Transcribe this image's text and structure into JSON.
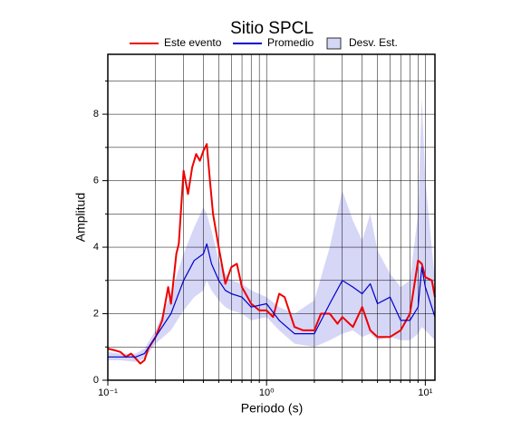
{
  "chart_data": {
    "type": "line",
    "title": "Sitio SPCL",
    "x_label": "Periodo (s)",
    "y_label": "Amplitud",
    "log_x": true,
    "grid": true,
    "xlim": [
      0.1,
      11.5
    ],
    "ylim": [
      0,
      9.8
    ],
    "xticks": [
      {
        "value": 0.1,
        "label": "10⁻¹"
      },
      {
        "value": 1,
        "label": "10⁰"
      },
      {
        "value": 10,
        "label": "10¹"
      }
    ],
    "xminor": [
      0.2,
      0.3,
      0.4,
      0.5,
      0.6,
      0.7,
      0.8,
      0.9,
      2,
      3,
      4,
      5,
      6,
      7,
      8,
      9
    ],
    "yticks": [
      0,
      2,
      4,
      6,
      8
    ],
    "yminor": [
      1,
      3,
      5,
      7,
      9
    ],
    "series": [
      {
        "name": "Este evento",
        "color": "#ee0000",
        "kind": "line",
        "x": [
          0.1,
          0.11,
          0.12,
          0.13,
          0.14,
          0.15,
          0.16,
          0.17,
          0.18,
          0.2,
          0.22,
          0.24,
          0.25,
          0.27,
          0.28,
          0.3,
          0.32,
          0.34,
          0.36,
          0.38,
          0.4,
          0.42,
          0.44,
          0.46,
          0.5,
          0.55,
          0.6,
          0.65,
          0.7,
          0.8,
          0.9,
          1.0,
          1.1,
          1.2,
          1.3,
          1.5,
          1.7,
          2.0,
          2.2,
          2.5,
          2.8,
          3.0,
          3.5,
          4.0,
          4.5,
          5.0,
          6.0,
          7.0,
          8.0,
          9.0,
          9.5,
          10,
          11,
          11.5
        ],
        "values": [
          0.95,
          0.9,
          0.85,
          0.7,
          0.8,
          0.65,
          0.5,
          0.6,
          0.95,
          1.3,
          1.8,
          2.8,
          2.3,
          3.8,
          4.1,
          6.3,
          5.6,
          6.4,
          6.8,
          6.6,
          6.9,
          7.1,
          6.0,
          5.0,
          4.0,
          2.9,
          3.4,
          3.5,
          2.8,
          2.3,
          2.1,
          2.1,
          1.9,
          2.6,
          2.5,
          1.6,
          1.5,
          1.5,
          2.0,
          2.0,
          1.7,
          1.9,
          1.6,
          2.2,
          1.5,
          1.3,
          1.3,
          1.5,
          2.0,
          3.6,
          3.5,
          3.1,
          3.0,
          2.5
        ]
      },
      {
        "name": "Promedio",
        "color": "#0000cc",
        "kind": "line",
        "x": [
          0.1,
          0.12,
          0.15,
          0.17,
          0.2,
          0.25,
          0.3,
          0.35,
          0.4,
          0.42,
          0.45,
          0.5,
          0.55,
          0.6,
          0.7,
          0.8,
          1.0,
          1.2,
          1.5,
          2.0,
          2.5,
          3.0,
          3.5,
          4.0,
          4.5,
          5.0,
          6.0,
          7.0,
          8.0,
          9.0,
          9.5,
          10,
          11.5
        ],
        "values": [
          0.7,
          0.7,
          0.7,
          0.8,
          1.3,
          2.0,
          3.0,
          3.6,
          3.8,
          4.1,
          3.5,
          3.0,
          2.7,
          2.6,
          2.5,
          2.2,
          2.3,
          1.8,
          1.4,
          1.4,
          2.3,
          3.0,
          2.8,
          2.6,
          2.9,
          2.3,
          2.5,
          1.8,
          1.8,
          2.2,
          3.4,
          2.8,
          1.9
        ]
      },
      {
        "name": "Desv. Est.",
        "color": "#d6d6f7",
        "kind": "band",
        "x": [
          0.1,
          0.12,
          0.15,
          0.17,
          0.2,
          0.25,
          0.3,
          0.35,
          0.4,
          0.42,
          0.45,
          0.5,
          0.55,
          0.6,
          0.7,
          0.8,
          1.0,
          1.2,
          1.5,
          2.0,
          2.5,
          3.0,
          3.5,
          4.0,
          4.5,
          5.0,
          6.0,
          7.0,
          8.0,
          9.0,
          9.5,
          10,
          11.5
        ],
        "upper": [
          0.85,
          0.8,
          0.8,
          0.95,
          1.5,
          2.6,
          3.8,
          4.6,
          5.2,
          5.0,
          4.5,
          3.6,
          3.2,
          3.0,
          2.9,
          2.7,
          2.5,
          2.2,
          2.0,
          2.4,
          4.0,
          5.7,
          4.8,
          4.2,
          5.0,
          3.9,
          3.2,
          2.8,
          3.0,
          5.0,
          8.5,
          6.0,
          3.0
        ],
        "lower": [
          0.6,
          0.6,
          0.55,
          0.65,
          1.1,
          1.5,
          2.1,
          2.5,
          2.7,
          3.0,
          2.7,
          2.4,
          2.2,
          2.1,
          2.0,
          1.8,
          1.9,
          1.5,
          1.1,
          1.0,
          1.2,
          1.4,
          1.5,
          1.3,
          1.4,
          1.2,
          1.3,
          1.2,
          1.2,
          1.4,
          1.6,
          1.5,
          1.2
        ]
      }
    ]
  }
}
